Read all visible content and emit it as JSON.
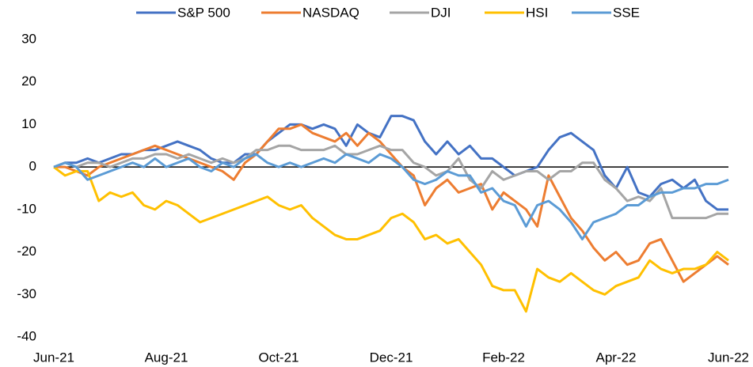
{
  "chart_data": {
    "type": "line",
    "categories": [
      "Jun-21",
      null,
      null,
      null,
      null,
      null,
      null,
      null,
      null,
      null,
      "Aug-21",
      null,
      null,
      null,
      null,
      null,
      null,
      null,
      null,
      null,
      "Oct-21",
      null,
      null,
      null,
      null,
      null,
      null,
      null,
      null,
      null,
      "Dec-21",
      null,
      null,
      null,
      null,
      null,
      null,
      null,
      null,
      null,
      "Feb-22",
      null,
      null,
      null,
      null,
      null,
      null,
      null,
      null,
      null,
      "Apr-22",
      null,
      null,
      null,
      null,
      null,
      null,
      null,
      null,
      null,
      "Jun-22"
    ],
    "series": [
      {
        "name": "S&P 500",
        "color": "#4472c4",
        "values": [
          0,
          1,
          1,
          2,
          1,
          2,
          3,
          3,
          4,
          4,
          5,
          6,
          5,
          4,
          2,
          1,
          1,
          3,
          3,
          6,
          8,
          10,
          10,
          9,
          10,
          9,
          5,
          10,
          8,
          7,
          12,
          12,
          11,
          6,
          3,
          6,
          3,
          5,
          2,
          2,
          0,
          -2,
          -1,
          0,
          4,
          7,
          8,
          6,
          4,
          -2,
          -5,
          0,
          -6,
          -7,
          -4,
          -3,
          -5,
          -3,
          -8,
          -10,
          -10
        ]
      },
      {
        "name": "NASDAQ",
        "color": "#ed7d31",
        "values": [
          0,
          0,
          -1,
          -2,
          0,
          1,
          2,
          3,
          4,
          5,
          4,
          3,
          2,
          1,
          0,
          -1,
          -3,
          1,
          3,
          6,
          9,
          9,
          10,
          8,
          7,
          6,
          8,
          5,
          8,
          6,
          3,
          0,
          -2,
          -9,
          -5,
          -3,
          -6,
          -5,
          -4,
          -10,
          -6,
          -8,
          -10,
          -14,
          -2,
          -7,
          -12,
          -15,
          -19,
          -22,
          -20,
          -23,
          -22,
          -18,
          -17,
          -22,
          -27,
          -25,
          -23,
          -21,
          -23
        ]
      },
      {
        "name": "DJI",
        "color": "#a5a5a5",
        "values": [
          0,
          1,
          0,
          1,
          1,
          0,
          1,
          2,
          2,
          3,
          3,
          2,
          3,
          2,
          1,
          2,
          1,
          2,
          4,
          4,
          5,
          5,
          4,
          4,
          4,
          5,
          3,
          3,
          4,
          5,
          4,
          4,
          1,
          0,
          -2,
          -1,
          2,
          -3,
          -5,
          -1,
          -3,
          -2,
          -1,
          -1,
          -3,
          -1,
          -1,
          1,
          1,
          -3,
          -5,
          -8,
          -7,
          -8,
          -5,
          -12,
          -12,
          -12,
          -12,
          -11,
          -11
        ]
      },
      {
        "name": "HSI",
        "color": "#ffc000",
        "values": [
          0,
          -2,
          -1,
          -1,
          -8,
          -6,
          -7,
          -6,
          -9,
          -10,
          -8,
          -9,
          -11,
          -13,
          -12,
          -11,
          -10,
          -9,
          -8,
          -7,
          -9,
          -10,
          -9,
          -12,
          -14,
          -16,
          -17,
          -17,
          -16,
          -15,
          -12,
          -11,
          -13,
          -17,
          -16,
          -18,
          -17,
          -20,
          -23,
          -28,
          -29,
          -29,
          -34,
          -24,
          -26,
          -27,
          -25,
          -27,
          -29,
          -30,
          -28,
          -27,
          -26,
          -22,
          -24,
          -25,
          -24,
          -24,
          -23,
          -20,
          -22
        ]
      },
      {
        "name": "SSE",
        "color": "#5b9bd5",
        "values": [
          0,
          1,
          0,
          -3,
          -2,
          -1,
          0,
          1,
          0,
          2,
          0,
          1,
          2,
          0,
          -1,
          1,
          0,
          2,
          3,
          1,
          0,
          1,
          0,
          1,
          2,
          1,
          3,
          2,
          1,
          3,
          2,
          0,
          -3,
          -4,
          -3,
          -1,
          -2,
          -2,
          -6,
          -5,
          -8,
          -9,
          -14,
          -9,
          -8,
          -10,
          -13,
          -17,
          -13,
          -12,
          -11,
          -9,
          -9,
          -7,
          -6,
          -6,
          -5,
          -5,
          -4,
          -4,
          -3
        ]
      }
    ],
    "ylim": [
      -40,
      30
    ],
    "yticks": [
      -40,
      -30,
      -20,
      -10,
      0,
      10,
      20,
      30
    ],
    "grid": false,
    "legend": "top"
  }
}
